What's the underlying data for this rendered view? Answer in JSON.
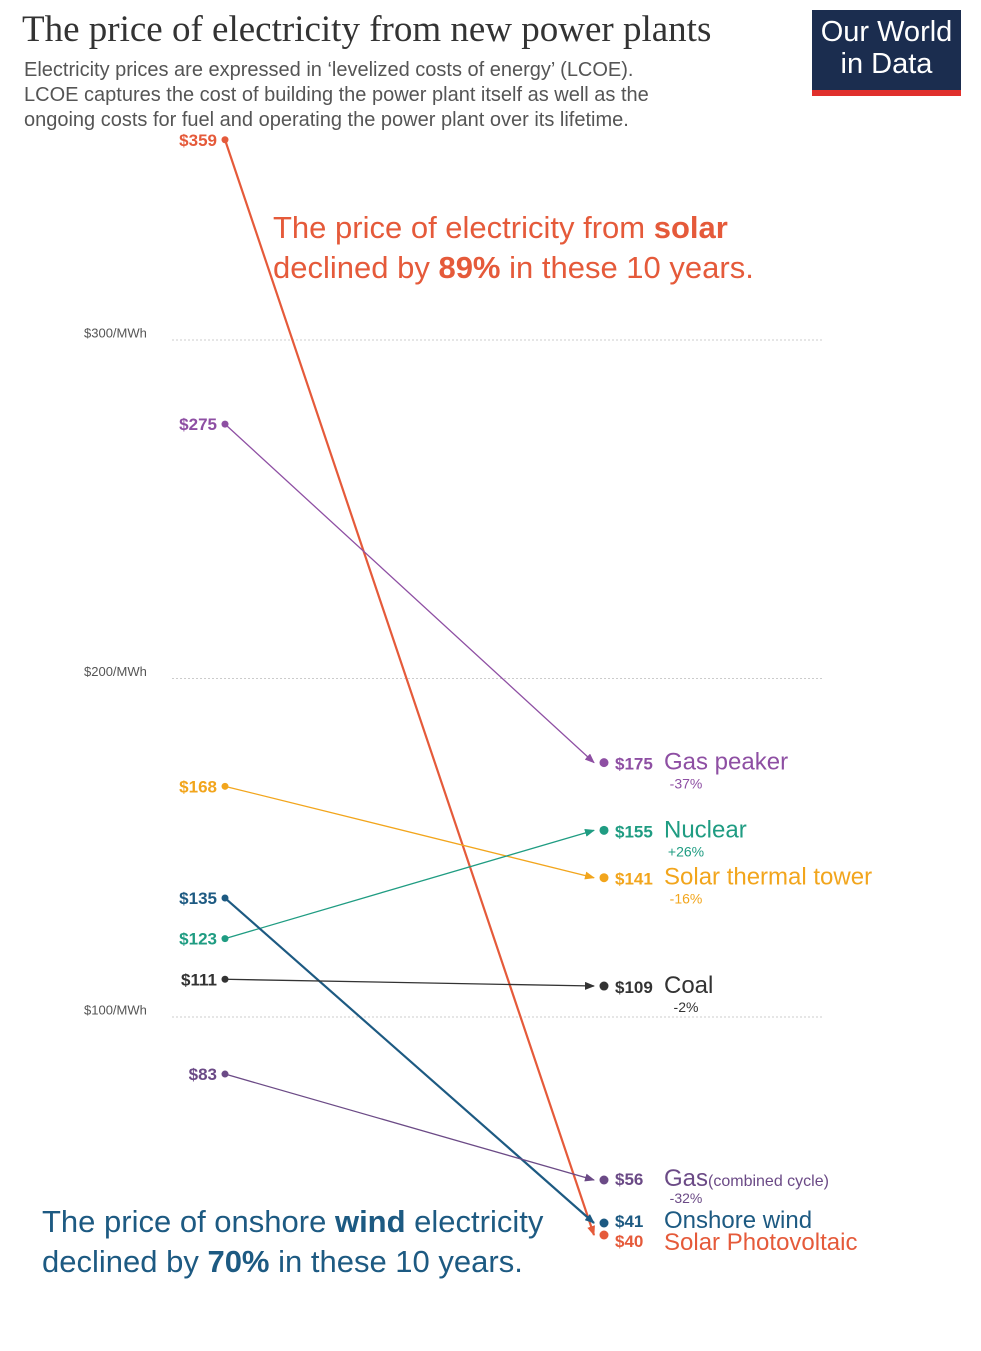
{
  "header": {
    "title": "The price of electricity from new power plants",
    "subtitle_lines": [
      "Electricity prices are expressed in ‘levelized costs of energy’ (LCOE).",
      "LCOE captures the cost of building the power plant itself as well as the",
      "ongoing costs for fuel and operating the power plant over its lifetime."
    ],
    "logo_line1": "Our World",
    "logo_line2": "in Data"
  },
  "annotations": {
    "solar": {
      "line1_a": "The price of electricity from ",
      "line1_b": "solar",
      "line2_a": "declined by ",
      "line2_b": "89%",
      "line2_c": " in these 10 years."
    },
    "wind": {
      "line1_a": "The price of onshore ",
      "line1_b": "wind",
      "line1_c": " electricity",
      "line2_a": "declined by ",
      "line2_b": "70%",
      "line2_c": " in these 10 years."
    }
  },
  "chart_data": {
    "type": "line",
    "grid_lines": [
      {
        "value": 300,
        "label": "$300/MWh"
      },
      {
        "value": 200,
        "label": "$200/MWh"
      },
      {
        "value": 100,
        "label": "$100/MWh"
      }
    ],
    "series": [
      {
        "name": "Solar Photovoltaic",
        "start": 359,
        "end": 40,
        "start_label": "$359",
        "end_label": "$40",
        "change": "",
        "color": "#e55a3a"
      },
      {
        "name": "Gas peaker",
        "start": 275,
        "end": 175,
        "start_label": "$275",
        "end_label": "$175",
        "change": "-37%",
        "color": "#8e4fa3"
      },
      {
        "name": "Solar thermal tower",
        "start": 168,
        "end": 141,
        "start_label": "$168",
        "end_label": "$141",
        "change": "-16%",
        "color": "#f2a51c"
      },
      {
        "name": "Nuclear",
        "start": 123,
        "end": 155,
        "start_label": "$123",
        "end_label": "$155",
        "change": "+26%",
        "color": "#1f9c82"
      },
      {
        "name": "Onshore wind",
        "start": 135,
        "end": 41,
        "start_label": "$135",
        "end_label": "$41",
        "change": "",
        "color": "#1d5a82"
      },
      {
        "name": "Coal",
        "start": 111,
        "end": 109,
        "start_label": "$111",
        "end_label": "$109",
        "change": "-2%",
        "color": "#333333"
      },
      {
        "name": "Gas",
        "name_suffix": "(combined cycle)",
        "start": 83,
        "end": 56,
        "start_label": "$83",
        "end_label": "$56",
        "change": "-32%",
        "color": "#6b4a86"
      }
    ]
  }
}
